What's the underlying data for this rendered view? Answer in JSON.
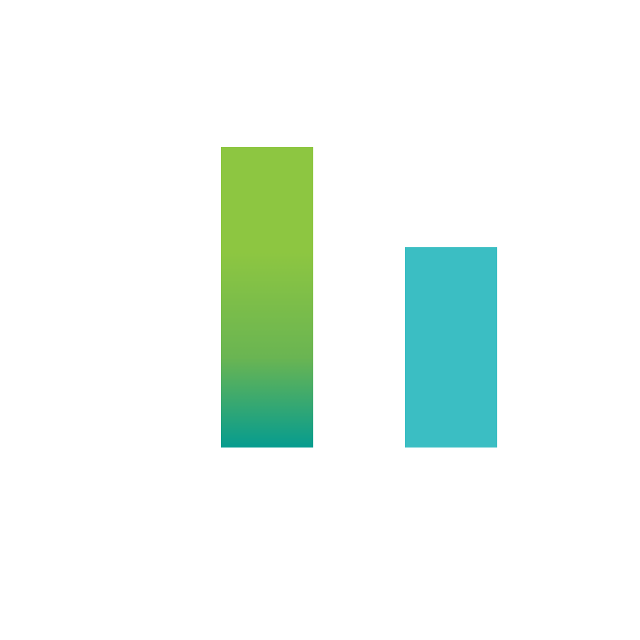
{
  "graphic": {
    "name": "bar-chart-icon",
    "bars": [
      {
        "name": "tall-bar",
        "relative_height": 1.0,
        "gradient_top": "#8DC641",
        "gradient_mid": "#6AB552",
        "gradient_bottom": "#069C8F"
      },
      {
        "name": "short-bar",
        "relative_height": 0.667,
        "color": "#3BBEC3"
      }
    ],
    "background": "#FFFFFF"
  }
}
